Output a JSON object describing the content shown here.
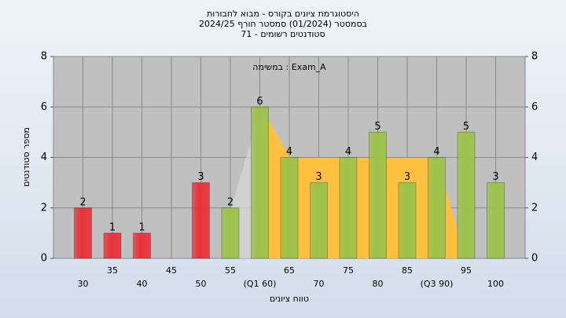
{
  "chart_data": {
    "type": "bar",
    "title": "היסטוגרמת ציונים בקורס - מבוא לחבורות",
    "subtitle": "בסמסטר  (01/2024)  סמסטר חורף 2024/25",
    "subtitle2": "סטודנטים רשומים - 71",
    "annotation": "במשימה : Exam_A",
    "x_label": "טווח ציונים",
    "y_label": "מספר סטודנטים",
    "categories": [
      "30",
      "35",
      "40",
      "45",
      "50",
      "55",
      "(Q1 60)",
      "65",
      "70",
      "75",
      "80",
      "85",
      "(Q3 90)",
      "95",
      "100"
    ],
    "values": [
      2,
      1,
      1,
      0,
      3,
      2,
      6,
      4,
      3,
      4,
      5,
      3,
      4,
      5,
      3
    ],
    "colors": [
      "#e8323a",
      "#e8323a",
      "#e8323a",
      "#e8323a",
      "#e8323a",
      "#9cc24a",
      "#9cc24a",
      "#9cc24a",
      "#9cc24a",
      "#9cc24a",
      "#9cc24a",
      "#9cc24a",
      "#9cc24a",
      "#9cc24a",
      "#9cc24a"
    ],
    "ylim": [
      0,
      8
    ],
    "yticks": [
      0,
      2,
      4,
      6,
      8
    ],
    "y2ticks": [
      0,
      2,
      4,
      6,
      8
    ],
    "grid": true
  }
}
